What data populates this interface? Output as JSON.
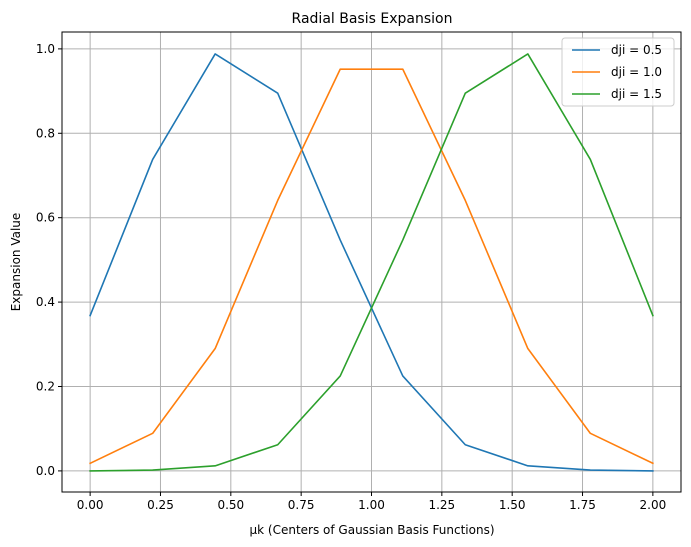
{
  "chart_data": {
    "type": "line",
    "title": "Radial Basis Expansion",
    "xlabel": "μk (Centers of Gaussian Basis Functions)",
    "ylabel": "Expansion Value",
    "xlim": [
      -0.1,
      2.1
    ],
    "ylim": [
      -0.05,
      1.04
    ],
    "x_ticks": [
      0.0,
      0.25,
      0.5,
      0.75,
      1.0,
      1.25,
      1.5,
      1.75,
      2.0
    ],
    "x_tick_labels": [
      "0.00",
      "0.25",
      "0.50",
      "0.75",
      "1.00",
      "1.25",
      "1.50",
      "1.75",
      "2.00"
    ],
    "y_ticks": [
      0.0,
      0.2,
      0.4,
      0.6,
      0.8,
      1.0
    ],
    "y_tick_labels": [
      "0.0",
      "0.2",
      "0.4",
      "0.6",
      "0.8",
      "1.0"
    ],
    "grid": true,
    "legend_position": "top-right",
    "x": [
      0.0,
      0.2222,
      0.4444,
      0.6667,
      0.8889,
      1.1111,
      1.3333,
      1.5556,
      1.7778,
      2.0
    ],
    "series": [
      {
        "name": "dji = 0.5",
        "color": "#1f77b4",
        "values": [
          0.368,
          0.738,
          0.988,
          0.895,
          0.547,
          0.225,
          0.062,
          0.012,
          0.002,
          0.0
        ]
      },
      {
        "name": "dji = 1.0",
        "color": "#ff7f0e",
        "values": [
          0.018,
          0.089,
          0.29,
          0.641,
          0.952,
          0.952,
          0.641,
          0.29,
          0.089,
          0.018
        ]
      },
      {
        "name": "dji = 1.5",
        "color": "#2ca02c",
        "values": [
          0.0,
          0.002,
          0.012,
          0.062,
          0.225,
          0.547,
          0.895,
          0.988,
          0.738,
          0.368
        ]
      }
    ]
  }
}
